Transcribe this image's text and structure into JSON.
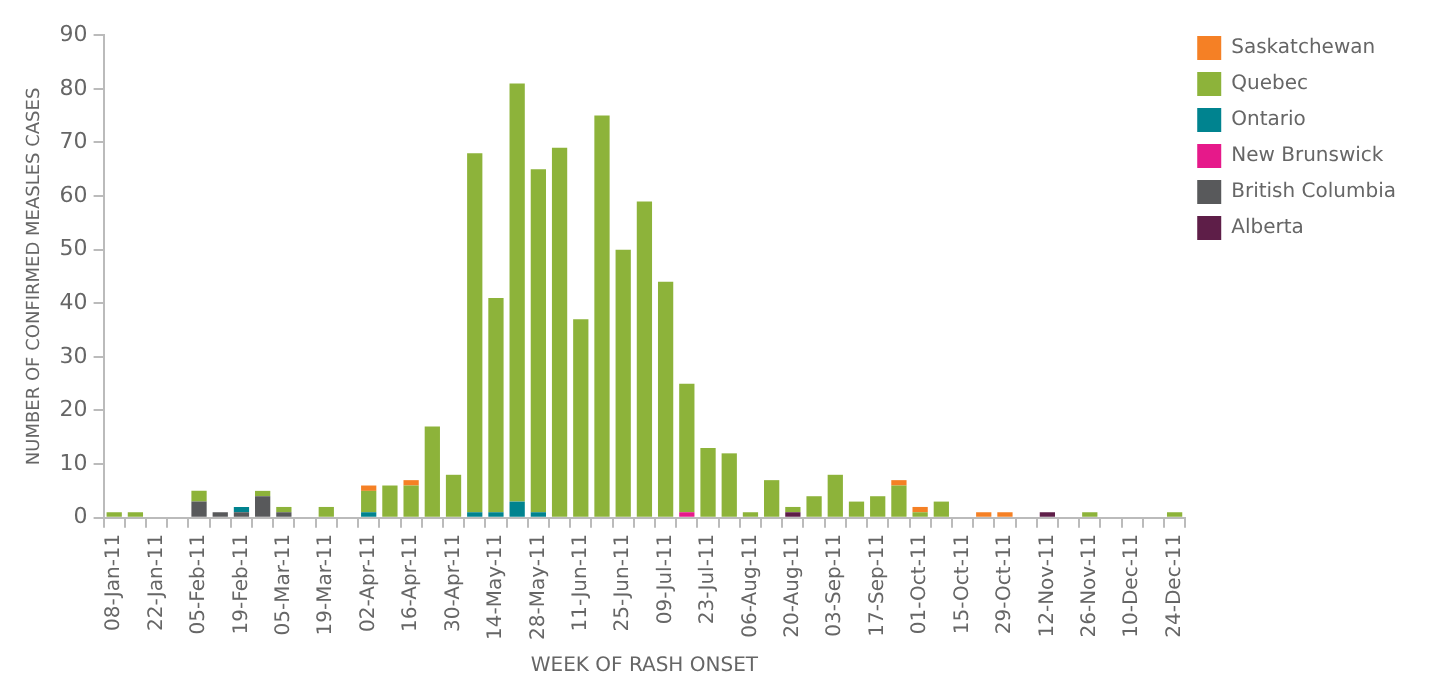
{
  "chart_data": {
    "type": "bar",
    "stacked": true,
    "xlabel": "WEEK OF RASH ONSET",
    "ylabel": "NUMBER OF CONFIRMED MEASLES CASES",
    "categories": [
      "08-Jan-11",
      null,
      "22-Jan-11",
      null,
      "05-Feb-11",
      null,
      "19-Feb-11",
      null,
      "05-Mar-11",
      null,
      "19-Mar-11",
      null,
      "02-Apr-11",
      null,
      "16-Apr-11",
      null,
      "30-Apr-11",
      null,
      "14-May-11",
      null,
      "28-May-11",
      null,
      "11-Jun-11",
      null,
      "25-Jun-11",
      null,
      "09-Jul-11",
      null,
      "23-Jul-11",
      null,
      "06-Aug-11",
      null,
      "20-Aug-11",
      null,
      "03-Sep-11",
      null,
      "17-Sep-11",
      null,
      "01-Oct-11",
      null,
      "15-Oct-11",
      null,
      "29-Oct-11",
      null,
      "12-Nov-11",
      null,
      "26-Nov-11",
      null,
      "10-Dec-11",
      null,
      "24-Dec-11"
    ],
    "series": [
      {
        "name": "Alberta",
        "color": "#5e1e48",
        "values": [
          0,
          0,
          0,
          0,
          0,
          0,
          0,
          0,
          0,
          0,
          0,
          0,
          0,
          0,
          0,
          0,
          0,
          0,
          0,
          0,
          0,
          0,
          0,
          0,
          0,
          0,
          0,
          0,
          0,
          0,
          0,
          0,
          1,
          0,
          0,
          0,
          0,
          0,
          0,
          0,
          0,
          0,
          0,
          0,
          1,
          0,
          0,
          0,
          0,
          0,
          0
        ]
      },
      {
        "name": "British Columbia",
        "color": "#58595b",
        "values": [
          0,
          0,
          0,
          0,
          3,
          1,
          1,
          4,
          1,
          0,
          0,
          0,
          0,
          0,
          0,
          0,
          0,
          0,
          0,
          0,
          0,
          0,
          0,
          0,
          0,
          0,
          0,
          0,
          0,
          0,
          0,
          0,
          0,
          0,
          0,
          0,
          0,
          0,
          0,
          0,
          0,
          0,
          0,
          0,
          0,
          0,
          0,
          0,
          0,
          0,
          0
        ]
      },
      {
        "name": "New Brunswick",
        "color": "#e6198a",
        "values": [
          0,
          0,
          0,
          0,
          0,
          0,
          0,
          0,
          0,
          0,
          0,
          0,
          0,
          0,
          0,
          0,
          0,
          0,
          0,
          0,
          0,
          0,
          0,
          0,
          0,
          0,
          0,
          1,
          0,
          0,
          0,
          0,
          0,
          0,
          0,
          0,
          0,
          0,
          0,
          0,
          0,
          0,
          0,
          0,
          0,
          0,
          0,
          0,
          0,
          0,
          0
        ]
      },
      {
        "name": "Ontario",
        "color": "#00838f",
        "values": [
          0,
          0,
          0,
          0,
          0,
          0,
          1,
          0,
          0,
          0,
          0,
          0,
          1,
          0,
          0,
          0,
          0,
          1,
          1,
          3,
          1,
          0,
          0,
          0,
          0,
          0,
          0,
          0,
          0,
          0,
          0,
          0,
          0,
          0,
          0,
          0,
          0,
          0,
          0,
          0,
          0,
          0,
          0,
          0,
          0,
          0,
          0,
          0,
          0,
          0,
          0
        ]
      },
      {
        "name": "Quebec",
        "color": "#8db33a",
        "values": [
          1,
          1,
          0,
          0,
          2,
          0,
          0,
          1,
          1,
          0,
          2,
          0,
          4,
          6,
          6,
          17,
          8,
          67,
          40,
          78,
          64,
          69,
          37,
          75,
          50,
          59,
          44,
          24,
          13,
          12,
          1,
          7,
          1,
          4,
          8,
          3,
          4,
          6,
          1,
          3,
          0,
          0,
          0,
          0,
          0,
          0,
          1,
          0,
          0,
          0,
          1
        ]
      },
      {
        "name": "Saskatchewan",
        "color": "#f58025",
        "values": [
          0,
          0,
          0,
          0,
          0,
          0,
          0,
          0,
          0,
          0,
          0,
          0,
          1,
          0,
          1,
          0,
          0,
          0,
          0,
          0,
          0,
          0,
          0,
          0,
          0,
          0,
          0,
          0,
          0,
          0,
          0,
          0,
          0,
          0,
          0,
          0,
          0,
          1,
          1,
          0,
          0,
          1,
          1,
          0,
          0,
          0,
          0,
          0,
          0,
          0,
          0
        ]
      }
    ],
    "ylim": [
      0,
      90
    ],
    "yticks": [
      0,
      10,
      20,
      30,
      40,
      50,
      60,
      70,
      80,
      90
    ],
    "grid": false,
    "legend": "top right"
  }
}
